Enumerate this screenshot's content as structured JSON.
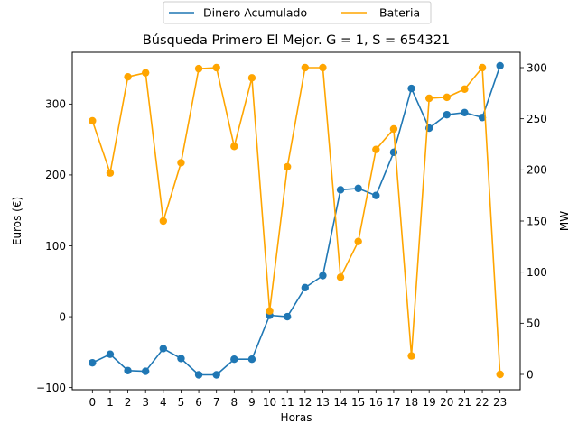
{
  "chart_data": {
    "type": "line",
    "title": "Búsqueda Primero El Mejor. G = 1, S = 654321",
    "xlabel": "Horas",
    "ylabel_left": "Euros (€)",
    "ylabel_right": "MW",
    "x": [
      0,
      1,
      2,
      3,
      4,
      5,
      6,
      7,
      8,
      9,
      10,
      11,
      12,
      13,
      14,
      15,
      16,
      17,
      18,
      19,
      20,
      21,
      22,
      23
    ],
    "x_ticks": [
      "0",
      "1",
      "2",
      "3",
      "4",
      "5",
      "6",
      "7",
      "8",
      "9",
      "10",
      "11",
      "12",
      "13",
      "14",
      "15",
      "16",
      "17",
      "18",
      "19",
      "20",
      "21",
      "22",
      "23"
    ],
    "ylim_left": [
      -103,
      373
    ],
    "yticks_left": [
      -100,
      0,
      100,
      200,
      300
    ],
    "ylim_right": [
      -15,
      315
    ],
    "yticks_right": [
      0,
      50,
      100,
      150,
      200,
      250,
      300
    ],
    "legend_position": "top-center",
    "grid": false,
    "series": [
      {
        "name": "Dinero Acumulado",
        "axis": "left",
        "color": "#1f77b4",
        "values": [
          -65,
          -53,
          -76,
          -77,
          -45,
          -59,
          -82,
          -82,
          -60,
          -60,
          2,
          0,
          41,
          58,
          179,
          181,
          171,
          232,
          322,
          266,
          285,
          288,
          281,
          354
        ]
      },
      {
        "name": "Bateria",
        "axis": "right",
        "color": "#ffa500",
        "values": [
          248,
          197,
          291,
          295,
          150,
          207,
          299,
          300,
          223,
          290,
          62,
          203,
          300,
          300,
          95,
          130,
          220,
          240,
          18,
          270,
          271,
          279,
          300,
          0
        ]
      }
    ]
  }
}
